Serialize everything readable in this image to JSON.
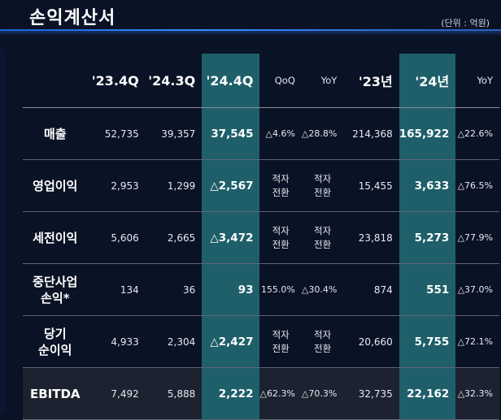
{
  "title": "손익계산서",
  "unit": "(단위 : 억원)",
  "columns": [
    "'23.4Q",
    "'24.3Q",
    "'24.4Q",
    "QoQ",
    "YoY",
    "'23년",
    "'24년",
    "YoY"
  ],
  "rows": [
    {
      "label": "매출",
      "values": [
        "52,735",
        "39,357",
        "37,545",
        "△4.6%",
        "△28.8%",
        "214,368",
        "165,922",
        "△22.6%"
      ]
    },
    {
      "label": "영업이익",
      "values": [
        "2,953",
        "1,299",
        "△2,567",
        "적자\n전환",
        "적자\n전환",
        "15,455",
        "3,633",
        "△76.5%"
      ]
    },
    {
      "label": "세전이익",
      "values": [
        "5,606",
        "2,665",
        "△3,472",
        "적자\n전환",
        "적자\n전환",
        "23,818",
        "5,273",
        "△77.9%"
      ]
    },
    {
      "label": "중단사업\n손익*",
      "values": [
        "134",
        "36",
        "93",
        "155.0%",
        "△30.4%",
        "874",
        "551",
        "△37.0%"
      ]
    },
    {
      "label": "당기\n순이익",
      "values": [
        "4,933",
        "2,304",
        "△2,427",
        "적자\n전환",
        "적자\n전환",
        "20,660",
        "5,755",
        "△72.1%"
      ]
    },
    {
      "label": "EBITDA",
      "values": [
        "7,492",
        "5,888",
        "2,222",
        "△62.3%",
        "△70.3%",
        "32,735",
        "22,162",
        "△32.3%"
      ]
    }
  ],
  "colors": {
    "background": "#0a1225",
    "highlight": "#1e5f6a",
    "accent_line": "#3a8cff"
  }
}
